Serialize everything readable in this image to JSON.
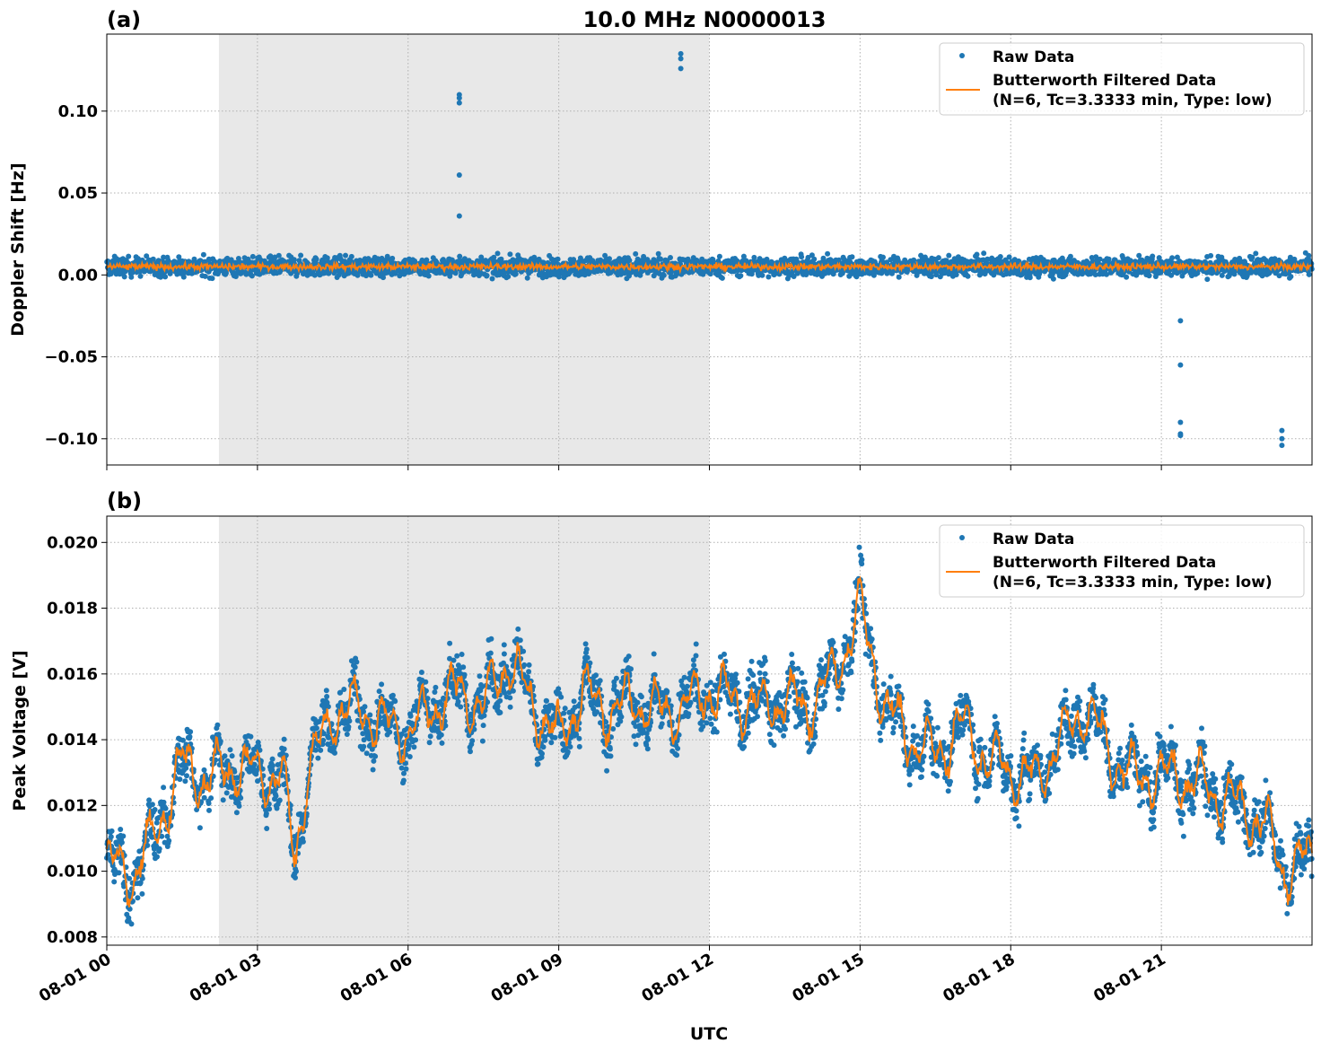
{
  "chart_data": [
    {
      "type": "scatter",
      "panel_label": "(a)",
      "title": "10.0 MHz N0000013",
      "xlabel": "",
      "ylabel": "Doppler Shift [Hz]",
      "xlim_hours_utc": [
        0,
        24
      ],
      "ylim": [
        -0.116,
        0.147
      ],
      "yticks": [
        -0.1,
        -0.05,
        0.0,
        0.05,
        0.1
      ],
      "ytick_labels": [
        "−0.10",
        "−0.05",
        "0.00",
        "0.05",
        "0.10"
      ],
      "grid": true,
      "legend_placement": "top-right",
      "legend": [
        "Raw Data",
        "Butterworth Filtered Data",
        "(N=6, Tc=3.3333 min, Type: low)"
      ],
      "shaded_interval_utc": [
        "08-01 02:14",
        "08-01 12:00"
      ],
      "series": [
        {
          "name": "Raw Data",
          "style": "points",
          "color": "#1f77b4",
          "typical_center": 0.005,
          "typical_spread": 0.01,
          "outliers": [
            [
              7.02,
              0.11
            ],
            [
              7.02,
              0.108
            ],
            [
              7.02,
              0.105
            ],
            [
              7.02,
              0.061
            ],
            [
              7.02,
              0.036
            ],
            [
              11.43,
              0.135
            ],
            [
              11.43,
              0.132
            ],
            [
              11.43,
              0.126
            ],
            [
              21.38,
              -0.028
            ],
            [
              21.38,
              -0.055
            ],
            [
              21.38,
              -0.09
            ],
            [
              21.38,
              -0.097
            ],
            [
              21.38,
              -0.098
            ],
            [
              23.4,
              -0.095
            ],
            [
              23.4,
              -0.1
            ],
            [
              23.4,
              -0.104
            ]
          ]
        },
        {
          "name": "Butterworth Filtered Data",
          "style": "line",
          "color": "#ff7f0e",
          "typical_value": 0.005
        }
      ]
    },
    {
      "type": "scatter",
      "panel_label": "(b)",
      "xlabel": "UTC",
      "ylabel": "Peak Voltage [V]",
      "xlim_hours_utc": [
        0,
        24
      ],
      "ylim": [
        0.00775,
        0.0208
      ],
      "yticks": [
        0.008,
        0.01,
        0.012,
        0.014,
        0.016,
        0.018,
        0.02
      ],
      "ytick_labels": [
        "0.008",
        "0.010",
        "0.012",
        "0.014",
        "0.016",
        "0.018",
        "0.020"
      ],
      "xticks_hours": [
        0,
        3,
        6,
        9,
        12,
        15,
        18,
        21
      ],
      "xtick_labels": [
        "08-01 00",
        "08-01 03",
        "08-01 06",
        "08-01 09",
        "08-01 12",
        "08-01 15",
        "08-01 18",
        "08-01 21"
      ],
      "grid": true,
      "legend_placement": "top-right",
      "legend": [
        "Raw Data",
        "Butterworth Filtered Data",
        "(N=6, Tc=3.3333 min, Type: low)"
      ],
      "shaded_interval_utc": [
        "08-01 02:14",
        "08-01 12:00"
      ],
      "x_hours": [
        0,
        0.5,
        1,
        1.5,
        2,
        2.5,
        3,
        3.5,
        3.75,
        4,
        4.5,
        5,
        5.5,
        6,
        6.5,
        7,
        7.5,
        8,
        8.5,
        9,
        9.5,
        10,
        10.5,
        11,
        11.5,
        12,
        12.5,
        13,
        13.5,
        14,
        14.5,
        15,
        15.5,
        16,
        16.5,
        17,
        17.5,
        18,
        18.5,
        19,
        19.5,
        20,
        20.5,
        21,
        21.5,
        22,
        22.5,
        23,
        23.5,
        24
      ],
      "series": [
        {
          "name": "Butterworth Filtered Data",
          "style": "line",
          "color": "#ff7f0e",
          "values": [
            0.0103,
            0.0098,
            0.0112,
            0.0133,
            0.0128,
            0.0132,
            0.013,
            0.0128,
            0.0105,
            0.013,
            0.0148,
            0.015,
            0.0145,
            0.0142,
            0.015,
            0.0155,
            0.015,
            0.0165,
            0.015,
            0.014,
            0.0155,
            0.0148,
            0.0152,
            0.0148,
            0.015,
            0.0155,
            0.0152,
            0.015,
            0.0152,
            0.015,
            0.016,
            0.018,
            0.015,
            0.014,
            0.0135,
            0.0145,
            0.0135,
            0.013,
            0.0128,
            0.014,
            0.015,
            0.0135,
            0.0128,
            0.013,
            0.0128,
            0.0125,
            0.012,
            0.0115,
            0.01,
            0.0105
          ]
        },
        {
          "name": "Raw Data",
          "style": "points",
          "color": "#1f77b4",
          "typical_spread": 0.0012
        }
      ]
    }
  ],
  "colors": {
    "raw": "#1f77b4",
    "filtered": "#ff7f0e",
    "shade": "#e8e8e8",
    "grid": "#b0b0b0"
  }
}
